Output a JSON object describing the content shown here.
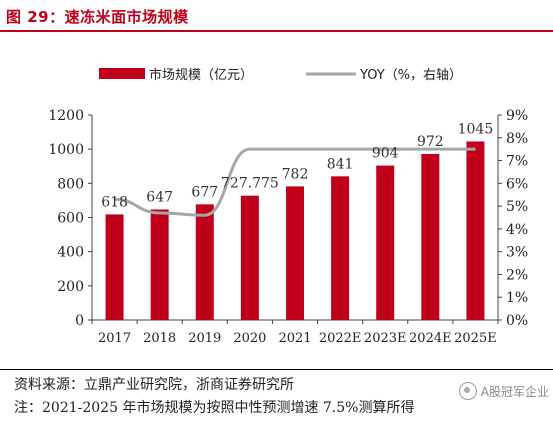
{
  "header": {
    "title": "图 29：速冻米面市场规模"
  },
  "chart_data": {
    "type": "bar",
    "categories": [
      "2017",
      "2018",
      "2019",
      "2020",
      "2021",
      "2022E",
      "2023E",
      "2024E",
      "2025E"
    ],
    "series": [
      {
        "name": "市场规模（亿元）",
        "type": "bar",
        "axis": "left",
        "color": "#c0001a",
        "values": [
          618,
          647,
          677,
          727.775,
          782,
          841,
          904,
          972,
          1045
        ],
        "labels": [
          "618",
          "647",
          "677",
          "727.775",
          "782",
          "841",
          "904",
          "972",
          "1045"
        ]
      },
      {
        "name": "YOY（%，右轴）",
        "type": "line",
        "axis": "right",
        "color": "#a6a6a6",
        "values": [
          null,
          4.7,
          4.6,
          7.5,
          7.5,
          7.5,
          7.5,
          7.5,
          7.5
        ]
      }
    ],
    "y_left": {
      "min": 0,
      "max": 1200,
      "ticks": [
        "0",
        "200",
        "400",
        "600",
        "800",
        "1000",
        "1200"
      ]
    },
    "y_right": {
      "min": 0,
      "max": 9,
      "ticks": [
        "0%",
        "1%",
        "2%",
        "3%",
        "4%",
        "5%",
        "6%",
        "7%",
        "8%",
        "9%"
      ]
    },
    "grid": false,
    "legend_position": "top"
  },
  "footer": {
    "source": "资料来源：立鼎产业研究院，浙商证券研究所",
    "note": "注：2021-2025 年市场规模为按照中性预测增速 7.5%测算所得",
    "watermark": "A股冠军企业"
  }
}
